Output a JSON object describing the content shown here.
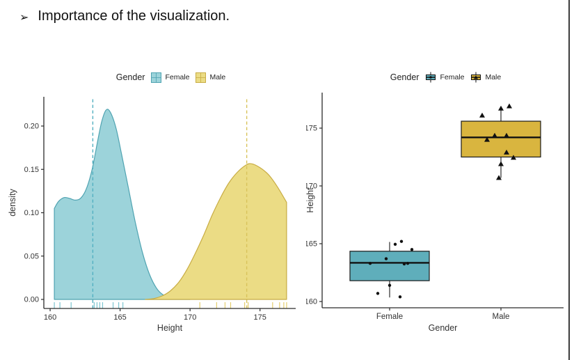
{
  "slide": {
    "bullet_glyph": "➢",
    "heading": "Importance of the visualization."
  },
  "colors": {
    "page_border": "#3C3C3C",
    "axis": "#2B2B2B",
    "text": "#333333",
    "heading": "#111111",
    "point": "#111111"
  },
  "chart_data": [
    {
      "id": "height-density-by-gender",
      "type": "area",
      "title": "",
      "legend_title": "Gender",
      "legend_position": "top",
      "xlabel": "Height",
      "ylabel": "density",
      "xlim": [
        159.55,
        177.55
      ],
      "ylim": [
        0,
        0.2376
      ],
      "xticks": [
        160,
        165,
        170,
        175
      ],
      "ytick_values": [
        0,
        0.05,
        0.1,
        0.15,
        0.2
      ],
      "ytick_labels": [
        "0.00",
        "0.05",
        "0.10",
        "0.15",
        "0.20"
      ],
      "grid": false,
      "series": [
        {
          "name": "Female",
          "fill": "#9CD3DA",
          "stroke": "#4FA3B1",
          "mean_line_x": 163.05,
          "mean_line_color": "#52AFC0",
          "rug_color": "#7CC5D0",
          "curve": [
            [
              160.3,
              0.105
            ],
            [
              160.6,
              0.113
            ],
            [
              161.0,
              0.1175
            ],
            [
              161.4,
              0.1165
            ],
            [
              161.8,
              0.1145
            ],
            [
              162.2,
              0.117
            ],
            [
              162.6,
              0.128
            ],
            [
              163.0,
              0.15
            ],
            [
              163.4,
              0.183
            ],
            [
              163.7,
              0.206
            ],
            [
              164.0,
              0.2185
            ],
            [
              164.3,
              0.216
            ],
            [
              164.7,
              0.198
            ],
            [
              165.1,
              0.168
            ],
            [
              165.6,
              0.128
            ],
            [
              166.1,
              0.088
            ],
            [
              166.6,
              0.054
            ],
            [
              167.1,
              0.029
            ],
            [
              167.6,
              0.013
            ],
            [
              168.1,
              0.005
            ],
            [
              168.7,
              0.0015
            ],
            [
              169.4,
              0.0003
            ],
            [
              170.0,
              0
            ]
          ],
          "rug": [
            160.3,
            160.7,
            161.5,
            163.15,
            163.35,
            163.55,
            163.75,
            164.5,
            164.9,
            165.2
          ]
        },
        {
          "name": "Male",
          "fill": "#EBDC85",
          "stroke": "#C8AC43",
          "mean_line_x": 174.05,
          "mean_line_color": "#D8C35B",
          "rug_color": "#E4CD6E",
          "curve": [
            [
              166.8,
              0
            ],
            [
              167.4,
              0.001
            ],
            [
              168.0,
              0.004
            ],
            [
              168.6,
              0.01
            ],
            [
              169.2,
              0.02
            ],
            [
              169.8,
              0.035
            ],
            [
              170.4,
              0.054
            ],
            [
              171.0,
              0.075
            ],
            [
              171.6,
              0.098
            ],
            [
              172.2,
              0.118
            ],
            [
              172.8,
              0.135
            ],
            [
              173.4,
              0.147
            ],
            [
              174.0,
              0.155
            ],
            [
              174.4,
              0.1565
            ],
            [
              175.0,
              0.152
            ],
            [
              175.6,
              0.144
            ],
            [
              176.2,
              0.131
            ],
            [
              176.9,
              0.112
            ]
          ],
          "rug": [
            170.7,
            171.9,
            172.5,
            172.9,
            173.9,
            174.15,
            175.9,
            176.4,
            176.7,
            176.9
          ]
        }
      ]
    },
    {
      "id": "height-boxplot-by-gender",
      "type": "boxplot",
      "title": "",
      "legend_title": "Gender",
      "legend_position": "top",
      "xlabel": "Gender",
      "ylabel": "Height",
      "ylim": [
        159.4,
        177.9
      ],
      "ytick_values": [
        160,
        165,
        170,
        175
      ],
      "ytick_labels": [
        "160",
        "165",
        "170",
        "175"
      ],
      "grid": false,
      "groups": [
        {
          "name": "Female",
          "fill": "#5FAEBB",
          "marker": "circle",
          "stats": {
            "whisker_low": 160.35,
            "q1": 161.8,
            "median": 163.35,
            "q3": 164.35,
            "whisker_high": 165.15
          },
          "points": [
            {
              "dx": -28,
              "y": 163.3
            },
            {
              "dx": -5,
              "y": 163.7
            },
            {
              "dx": 8,
              "y": 164.95
            },
            {
              "dx": 17,
              "y": 165.2
            },
            {
              "dx": 32,
              "y": 164.5
            },
            {
              "dx": 21,
              "y": 163.25
            },
            {
              "dx": 26,
              "y": 163.3
            },
            {
              "dx": 0,
              "y": 161.4
            },
            {
              "dx": -17,
              "y": 160.7
            },
            {
              "dx": 15,
              "y": 160.4
            }
          ]
        },
        {
          "name": "Male",
          "fill": "#D9B53F",
          "marker": "triangle",
          "stats": {
            "whisker_low": 170.7,
            "q1": 172.5,
            "median": 174.2,
            "q3": 175.6,
            "whisker_high": 176.6
          },
          "points": [
            {
              "dx": -27,
              "y": 176.1
            },
            {
              "dx": 0,
              "y": 176.7
            },
            {
              "dx": 12,
              "y": 176.9
            },
            {
              "dx": -9,
              "y": 174.35
            },
            {
              "dx": 8,
              "y": 174.35
            },
            {
              "dx": -20,
              "y": 174.0
            },
            {
              "dx": 8,
              "y": 172.9
            },
            {
              "dx": 18,
              "y": 172.45
            },
            {
              "dx": 0,
              "y": 171.9
            },
            {
              "dx": -3,
              "y": 170.7
            }
          ]
        }
      ]
    }
  ]
}
